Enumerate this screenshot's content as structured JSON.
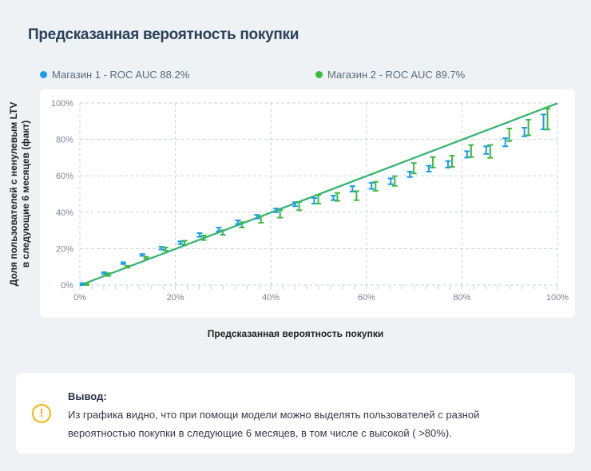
{
  "title": "Предсказанная вероятность покупки",
  "colors": {
    "store1": "#1a9cf0",
    "store2": "#3dbb3f",
    "grid": "#c9d3df",
    "warning": "#f5b400"
  },
  "chart_data": {
    "type": "errorbar",
    "title": "Предсказанная вероятность покупки",
    "xlabel": "Предсказанная вероятность покупки",
    "ylabel": [
      "Доля пользователей с ненулевым LTV",
      "в следующие 6 месяцев (факт)"
    ],
    "xlim": [
      0,
      100
    ],
    "ylim": [
      0,
      100
    ],
    "x_ticks": [
      "0%",
      "20%",
      "40%",
      "60%",
      "80%",
      "100%"
    ],
    "y_ticks": [
      "0%",
      "20%",
      "40%",
      "60%",
      "80%",
      "100%"
    ],
    "grid": true,
    "legend_position": "top",
    "reference_line": {
      "from": [
        0,
        0
      ],
      "to": [
        100,
        100
      ]
    },
    "x": [
      1,
      5.5,
      9.5,
      13.5,
      17.5,
      21.5,
      25.5,
      29.5,
      33.5,
      37.5,
      41.5,
      45.5,
      49.5,
      53.5,
      57.5,
      61.5,
      65.5,
      69.5,
      73.5,
      77.5,
      81.5,
      85.5,
      89.5,
      93.5,
      97.5
    ],
    "series": [
      {
        "name": "Магазин 1 - ROC AUC 88.2%",
        "color": "#1a9cf0",
        "low": [
          0,
          6,
          11.5,
          16,
          19.5,
          22.5,
          26.5,
          29.5,
          33.5,
          36.5,
          40,
          43.3,
          44.7,
          46.6,
          51.3,
          52.8,
          55.4,
          59.3,
          62.3,
          64.5,
          70,
          72,
          76.2,
          81.7,
          85.5
        ],
        "high": [
          1,
          7,
          12.5,
          17,
          21,
          24,
          28.5,
          31.5,
          35.5,
          38.5,
          42,
          45.5,
          47.8,
          49.1,
          54.3,
          56.1,
          58.6,
          62.3,
          65.5,
          68.1,
          73.5,
          76.2,
          80.6,
          86.4,
          93.7
        ]
      },
      {
        "name": "Магазин 2 - ROC AUC 89.7%",
        "color": "#3dbb3f",
        "low": [
          0,
          5,
          9.5,
          14.5,
          18.9,
          22,
          24.7,
          27.6,
          31.6,
          34.2,
          37,
          41.1,
          44.7,
          46.2,
          46.6,
          51.8,
          54.5,
          61.3,
          64.5,
          64.9,
          70.3,
          69.9,
          79.1,
          82.3,
          85.4
        ],
        "high": [
          1,
          6.5,
          10.5,
          15.5,
          20.6,
          24.3,
          27.2,
          30.1,
          34.5,
          37.9,
          41.1,
          45.7,
          49.4,
          50.6,
          51.6,
          56.7,
          59.8,
          67,
          70.3,
          71,
          76.9,
          76.9,
          86,
          90.8,
          96.9
        ]
      }
    ]
  },
  "note": {
    "title": "Вывод:",
    "icon": "warning-icon",
    "text": "Из графика видно, что при помощи модели можно выделять пользователей с разной вероятностью покупки в следующие 6 месяцев, в том числе с высокой ( >80%)."
  }
}
